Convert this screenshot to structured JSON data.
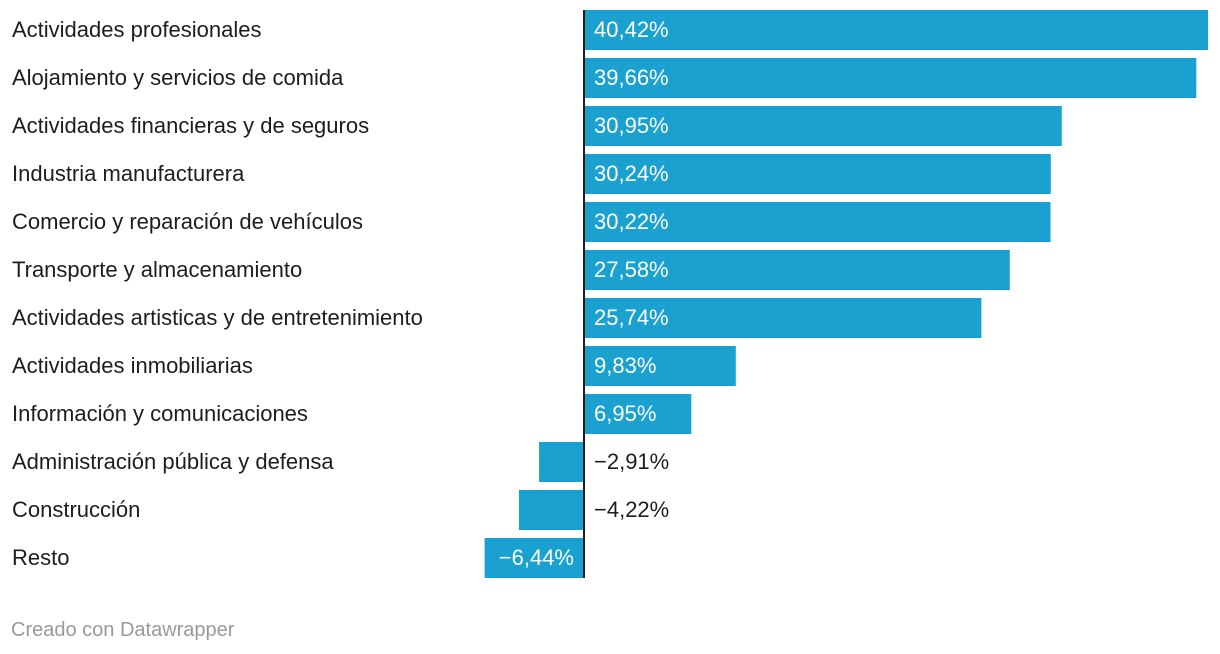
{
  "chart_data": {
    "type": "bar",
    "orientation": "horizontal",
    "categories": [
      "Actividades profesionales",
      "Alojamiento y servicios de comida",
      "Actividades financieras y de seguros",
      "Industria manufacturera",
      "Comercio y reparación de vehículos",
      "Transporte y almacenamiento",
      "Actividades artisticas y de entretenimiento",
      "Actividades inmobiliarias",
      "Información y comunicaciones",
      "Administración pública y defensa",
      "Construcción",
      "Resto"
    ],
    "values": [
      40.42,
      39.66,
      30.95,
      30.24,
      30.22,
      27.58,
      25.74,
      9.83,
      6.95,
      -2.91,
      -4.22,
      -6.44
    ],
    "value_labels": [
      "40,42%",
      "39,66%",
      "30,95%",
      "30,24%",
      "30,22%",
      "27,58%",
      "25,74%",
      "9,83%",
      "6,95%",
      "−2,91%",
      "−4,22%",
      "−6,44%"
    ],
    "xlim": [
      -6.44,
      40.42
    ],
    "bar_color": "#1aa1cf",
    "label_color_inside": "#ffffff",
    "label_color_outside": "#1d1d1d",
    "axis_color": "#1d1d1d"
  },
  "footer": {
    "credit": "Creado con Datawrapper"
  }
}
